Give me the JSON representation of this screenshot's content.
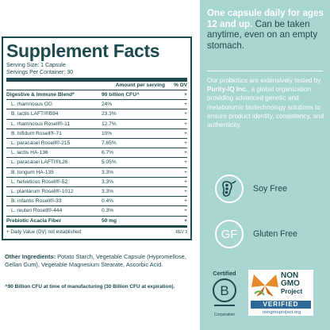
{
  "facts": {
    "title": "Supplement Facts",
    "serving_size": "Serving Size: 1 Capsule",
    "servings_per_container": "Servings Per Container: 30",
    "col_amount": "Amount per serving",
    "col_dv": "% DV",
    "rows": [
      {
        "name": "Digestive & Immune Blend*",
        "amount": "90 billion CFU^",
        "dv": "+",
        "bold": true
      },
      {
        "name": "L. rhamnosus GG",
        "amount": "24%",
        "dv": "+"
      },
      {
        "name": "B. lactis LAFTI®B94",
        "amount": "23.3%",
        "dv": "+"
      },
      {
        "name": "L. rhamnosus Rosell®-11",
        "amount": "12.7%",
        "dv": "+"
      },
      {
        "name": "B. bifidum Rosell®-71",
        "amount": "10%",
        "dv": "+"
      },
      {
        "name": "L. paracasei Rosell®-215",
        "amount": "7.65%",
        "dv": "+"
      },
      {
        "name": "L. lactis HA-136",
        "amount": "6.7%",
        "dv": "+"
      },
      {
        "name": "L. paracasei LAFTI®L26",
        "amount": "5.05%",
        "dv": "+"
      },
      {
        "name": "B. longum HA-135",
        "amount": "3.3%",
        "dv": "+"
      },
      {
        "name": "L. helveticus Rosell®-52",
        "amount": "3.3%",
        "dv": "+"
      },
      {
        "name": "L. plantarum Rosell®-1012",
        "amount": "3.3%",
        "dv": "+"
      },
      {
        "name": "B. infantis Rosell®-33",
        "amount": "0.4%",
        "dv": "+"
      },
      {
        "name": "L. reuteri Rosell®-444",
        "amount": "0.3%",
        "dv": "+"
      },
      {
        "name": "Prebiotic Acacia Fiber",
        "amount": "50 mg",
        "dv": "+",
        "bold": true
      }
    ],
    "footnote": "+ Daily Value (DV) not established",
    "rev": "REV 3"
  },
  "ingredients": {
    "label": "Other Ingredients:",
    "text": "Potato Starch, Vegetable Capsule (Hypromellose, Gellan Gum), Vegetable Magnesium Stearate, Ascorbic Acid."
  },
  "cfu_note": "^90 Billion CFU at time of manufacturing (30 Billion CFU at expiration).",
  "capsule": {
    "strong": "One capsule daily for ages 12 and up.",
    "soft": "Can be taken anytime, even on an empty stomach."
  },
  "probiotics": {
    "pre": "Our probiotics are extensively tested by",
    "strong": "Purity-IQ Inc.",
    "post": ", a global organization providing advanced genetic and metabolomic biotechnology solutions to ensure product identity, consistency, and authenticity."
  },
  "features": {
    "soy_free": "Soy Free",
    "gf_mark": "GF",
    "gluten_free": "Gluten Free"
  },
  "certified_b": {
    "label": "Certified",
    "mark": "B",
    "corporation": "Corporation"
  },
  "nongmo": {
    "non": "NON",
    "gmo": "GMO",
    "project": "Project",
    "verified": "VERIFIED",
    "site": "nongmoproject.org"
  },
  "colors": {
    "brand_teal_dark": "#1d4a4d",
    "panel_teal": "#a8d6d1",
    "verified_blue": "#2e6b9a"
  }
}
